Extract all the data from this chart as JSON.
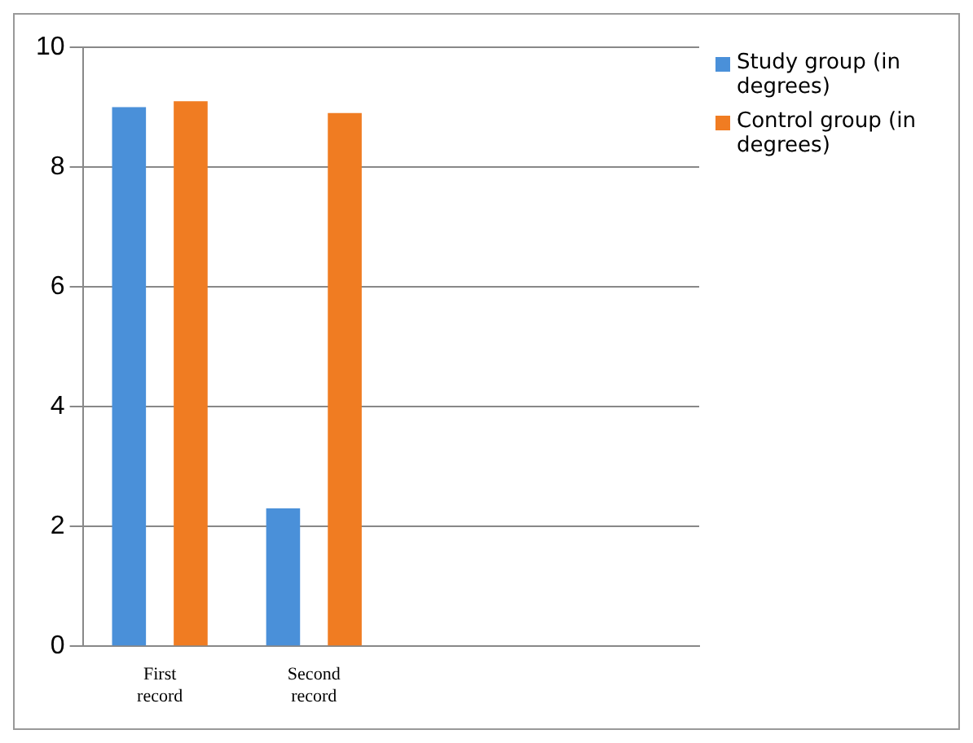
{
  "chart_data": {
    "type": "bar",
    "categories": [
      "First record",
      "Second record",
      null,
      null
    ],
    "series": [
      {
        "name": "Study group (in degrees)",
        "color": "#4a90d9",
        "values": [
          9.0,
          2.3,
          null,
          null
        ]
      },
      {
        "name": "Control group (in degrees)",
        "color": "#f07c22",
        "values": [
          9.1,
          8.9,
          null,
          null
        ]
      }
    ],
    "ylim": [
      0,
      10
    ],
    "yticks": [
      0,
      2,
      4,
      6,
      8,
      10
    ],
    "grid": "y",
    "legend": "top right"
  }
}
